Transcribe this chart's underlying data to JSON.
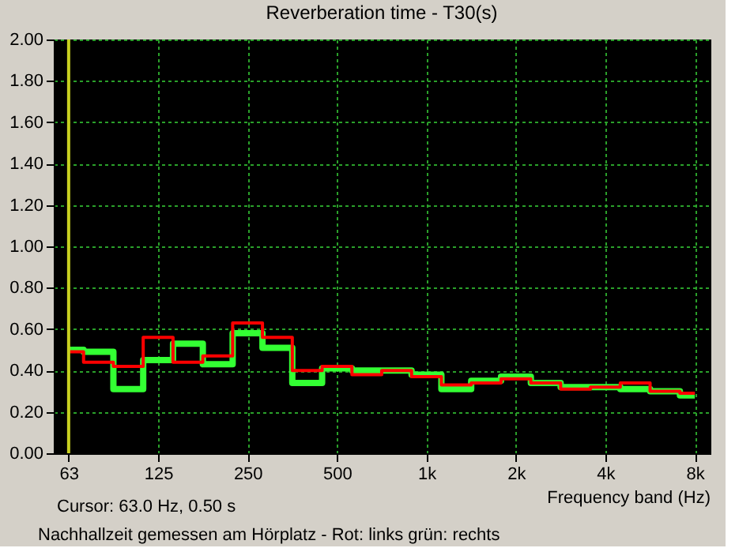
{
  "chart_data": {
    "type": "step",
    "title": "Reverberation time - T30(s)",
    "xlabel": "Frequency band (Hz)",
    "categories": [
      "63",
      null,
      null,
      "125",
      null,
      null,
      "250",
      null,
      null,
      "500",
      null,
      null,
      "1k",
      null,
      null,
      "2k",
      null,
      null,
      "4k",
      null,
      null,
      "8k"
    ],
    "series": [
      {
        "color": "#33ff33",
        "values": [
          0.5,
          0.49,
          0.31,
          0.45,
          0.53,
          0.43,
          0.58,
          0.51,
          0.34,
          0.41,
          0.4,
          0.4,
          0.38,
          0.31,
          0.35,
          0.37,
          0.34,
          0.32,
          0.32,
          0.31,
          0.3,
          0.28
        ]
      },
      {
        "color": "#ff0000",
        "values": [
          0.49,
          0.44,
          0.42,
          0.56,
          0.44,
          0.47,
          0.63,
          0.56,
          0.4,
          0.42,
          0.38,
          0.4,
          0.37,
          0.33,
          0.34,
          0.36,
          0.34,
          0.31,
          0.32,
          0.34,
          0.3,
          0.29
        ]
      }
    ],
    "ylim": [
      0,
      2
    ],
    "yticks": [
      {
        "value": 0,
        "label": "0.00"
      },
      {
        "value": 0.2,
        "label": "0.20"
      },
      {
        "value": 0.4,
        "label": "0.40"
      },
      {
        "value": 0.6,
        "label": "0.60"
      },
      {
        "value": 0.8,
        "label": "0.80"
      },
      {
        "value": 1.0,
        "label": "1.00"
      },
      {
        "value": 1.2,
        "label": "1.20"
      },
      {
        "value": 1.4,
        "label": "1.40"
      },
      {
        "value": 1.6,
        "label": "1.60"
      },
      {
        "value": 1.8,
        "label": "1.80"
      },
      {
        "value": 2.0,
        "label": "2.00"
      }
    ],
    "grid": true,
    "ref_lines": [
      {
        "axis": "x",
        "value": "63",
        "color": "#c8d020"
      }
    ],
    "annotations": [
      "Cursor:   63.0 Hz, 0.50 s",
      "Nachhallzeit gemessen am Hörplatz - Rot: links  grün: rechts"
    ]
  }
}
